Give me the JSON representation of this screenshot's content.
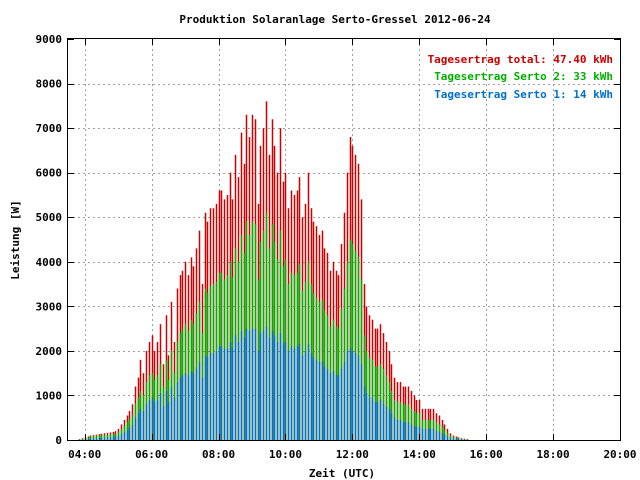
{
  "chart_data": {
    "type": "bar",
    "title": "Produktion Solaranlage Serto-Gressel 2012-06-24",
    "xlabel": "Zeit (UTC)",
    "ylabel": "Leistung [W]",
    "xlim": [
      3.5,
      20
    ],
    "ylim": [
      0,
      9000
    ],
    "xticks": [
      "04:00",
      "06:00",
      "08:00",
      "10:00",
      "12:00",
      "14:00",
      "16:00",
      "18:00",
      "20:00"
    ],
    "yticks": [
      "0",
      "1000",
      "2000",
      "3000",
      "4000",
      "5000",
      "6000",
      "7000",
      "8000",
      "9000"
    ],
    "grid": true,
    "legend_position": "top-right",
    "legend": [
      {
        "label": "Tagesertrag total: 47.40 kWh",
        "color": "#cc0000"
      },
      {
        "label": "Tagesertrag Serto 2: 33 kWh",
        "color": "#00b000"
      },
      {
        "label": "Tagesertrag Serto 1: 14 kWh",
        "color": "#0070cc"
      }
    ],
    "series": [
      {
        "name": "Tagesertrag total: 47.40 kWh",
        "color": "#cc0000"
      },
      {
        "name": "Tagesertrag Serto 2: 33 kWh",
        "color": "#00b000"
      },
      {
        "name": "Tagesertrag Serto 1: 14 kWh",
        "color": "#0070cc"
      }
    ],
    "interval_minutes": 5,
    "start": "03:50",
    "values_total": [
      20,
      40,
      60,
      80,
      100,
      110,
      120,
      130,
      140,
      150,
      160,
      170,
      180,
      200,
      250,
      350,
      450,
      550,
      650,
      800,
      1200,
      1400,
      1800,
      1500,
      2000,
      2200,
      2350,
      2000,
      2200,
      2600,
      1700,
      2800,
      1900,
      3100,
      2200,
      3400,
      3700,
      3800,
      4000,
      3700,
      4100,
      3900,
      4300,
      4700,
      3500,
      5100,
      4900,
      5200,
      5200,
      5300,
      5600,
      5600,
      5400,
      5500,
      6000,
      5400,
      6400,
      5900,
      6900,
      6200,
      7300,
      6800,
      7300,
      7200,
      5300,
      6600,
      7000,
      7600,
      6400,
      7200,
      6600,
      6000,
      7000,
      5800,
      6000,
      5200,
      5600,
      5500,
      5600,
      5900,
      5000,
      5300,
      6000,
      5200,
      4900,
      4800,
      4600,
      4700,
      4300,
      4200,
      3800,
      4000,
      3800,
      3700,
      4400,
      5100,
      6000,
      6800,
      6600,
      6400,
      6200,
      5400,
      3500,
      3000,
      2800,
      2700,
      2500,
      2500,
      2600,
      2400,
      2200,
      2000,
      1700,
      1400,
      1300,
      1300,
      1200,
      1200,
      1200,
      1100,
      1000,
      900,
      900,
      700,
      700,
      700,
      700,
      700,
      600,
      550,
      450,
      350,
      250,
      150,
      100,
      80,
      60,
      40,
      30,
      20
    ],
    "values_serto2": [
      15,
      30,
      45,
      60,
      80,
      90,
      100,
      105,
      110,
      115,
      120,
      125,
      130,
      140,
      180,
      250,
      320,
      400,
      480,
      560,
      820,
      950,
      1100,
      1000,
      1300,
      1450,
      1500,
      1350,
      1450,
      1700,
      1200,
      1800,
      1350,
      2000,
      1500,
      2200,
      2400,
      2500,
      2600,
      2450,
      2700,
      2600,
      2850,
      3100,
      2400,
      3400,
      3300,
      3450,
      3500,
      3550,
      3750,
      3750,
      3600,
      3700,
      4000,
      3650,
      4300,
      4000,
      4600,
      4200,
      4900,
      4600,
      4900,
      4850,
      3600,
      4450,
      4700,
      5100,
      4300,
      4850,
      4450,
      4050,
      4700,
      3900,
      4050,
      3500,
      3750,
      3700,
      3750,
      3950,
      3350,
      3550,
      4000,
      3500,
      3300,
      3200,
      3100,
      3150,
      2900,
      2800,
      2550,
      2700,
      2550,
      2500,
      2950,
      3400,
      4000,
      4500,
      4400,
      4250,
      4100,
      3600,
      2350,
      2000,
      1850,
      1800,
      1650,
      1650,
      1700,
      1600,
      1450,
      1300,
      1100,
      900,
      850,
      850,
      800,
      800,
      800,
      700,
      650,
      600,
      600,
      450,
      450,
      450,
      450,
      450,
      400,
      360,
      300,
      230,
      160,
      100,
      70,
      50,
      40,
      30,
      20,
      15
    ],
    "values_serto1": [
      5,
      10,
      15,
      20,
      30,
      35,
      40,
      45,
      50,
      55,
      60,
      65,
      70,
      80,
      100,
      130,
      170,
      220,
      280,
      340,
      500,
      600,
      700,
      650,
      800,
      900,
      950,
      850,
      900,
      1050,
      750,
      1100,
      850,
      1200,
      950,
      1300,
      1400,
      1450,
      1500,
      1450,
      1550,
      1500,
      1600,
      1750,
      1400,
      1900,
      1850,
      1950,
      1950,
      2000,
      2100,
      2100,
      2050,
      2050,
      2200,
      2050,
      2350,
      2200,
      2450,
      2300,
      2500,
      2450,
      2500,
      2500,
      2000,
      2400,
      2450,
      2550,
      2300,
      2450,
      2350,
      2200,
      2400,
      2150,
      2200,
      2000,
      2100,
      2050,
      2100,
      2150,
      1900,
      2000,
      2150,
      1950,
      1850,
      1800,
      1750,
      1750,
      1650,
      1600,
      1500,
      1550,
      1450,
      1450,
      1600,
      1750,
      2000,
      2050,
      2000,
      1950,
      1900,
      1700,
      1200,
      1050,
      950,
      950,
      850,
      850,
      900,
      800,
      750,
      700,
      600,
      500,
      450,
      450,
      400,
      400,
      400,
      350,
      300,
      300,
      300,
      250,
      250,
      250,
      250,
      250,
      200,
      180,
      150,
      120,
      80,
      50,
      30,
      30,
      20,
      20,
      10,
      5
    ]
  }
}
